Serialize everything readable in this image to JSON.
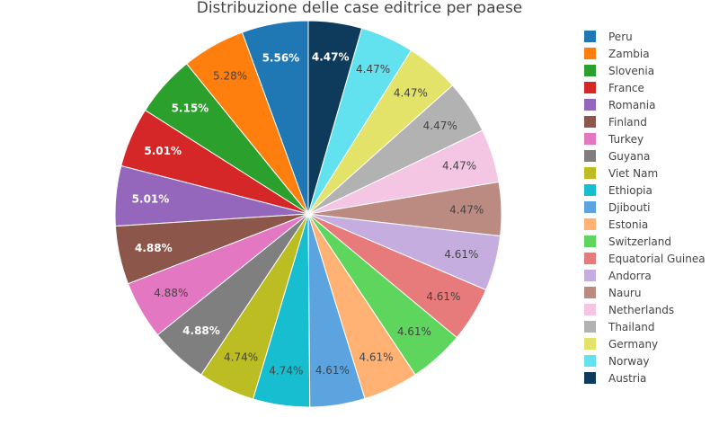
{
  "chart_data": {
    "type": "pie",
    "title": "Distribuzione delle case editrice per paese",
    "categories": [
      "Peru",
      "Zambia",
      "Slovenia",
      "France",
      "Romania",
      "Finland",
      "Turkey",
      "Guyana",
      "Viet Nam",
      "Ethiopia",
      "Djibouti",
      "Estonia",
      "Switzerland",
      "Equatorial Guinea",
      "Andorra",
      "Nauru",
      "Netherlands",
      "Thailand",
      "Germany",
      "Norway",
      "Austria"
    ],
    "values": [
      5.56,
      5.28,
      5.15,
      5.01,
      5.01,
      4.88,
      4.88,
      4.88,
      4.74,
      4.74,
      4.61,
      4.61,
      4.61,
      4.61,
      4.61,
      4.47,
      4.47,
      4.47,
      4.47,
      4.47,
      4.47
    ],
    "labels": [
      "5.56%",
      "5.28%",
      "5.15%",
      "5.01%",
      "5.01%",
      "4.88%",
      "4.88%",
      "4.88%",
      "4.74%",
      "4.74%",
      "4.61%",
      "4.61%",
      "4.61%",
      "4.61%",
      "4.61%",
      "4.47%",
      "4.47%",
      "4.47%",
      "4.47%",
      "4.47%",
      "4.47%"
    ],
    "colors": [
      "#1f77b4",
      "#ff7f0e",
      "#2ca02c",
      "#d62728",
      "#9467bd",
      "#8c564b",
      "#e377c2",
      "#7f7f7f",
      "#bcbd22",
      "#17becf",
      "#5ba4e0",
      "#ffb273",
      "#5ed65e",
      "#e77a7a",
      "#c5aedf",
      "#bb8b82",
      "#f4c6e4",
      "#b2b2b2",
      "#e2e368",
      "#62e1ee",
      "#0e3a5c"
    ],
    "label_text_colors": [
      "#ffffff",
      "#444444",
      "#ffffff",
      "#ffffff",
      "#ffffff",
      "#ffffff",
      "#444444",
      "#ffffff",
      "#444444",
      "#444444",
      "#444444",
      "#444444",
      "#444444",
      "#444444",
      "#444444",
      "#444444",
      "#444444",
      "#444444",
      "#444444",
      "#444444",
      "#ffffff"
    ],
    "legend": {
      "placement": "right",
      "order": [
        "Peru",
        "Zambia",
        "Slovenia",
        "France",
        "Romania",
        "Finland",
        "Turkey",
        "Guyana",
        "Viet Nam",
        "Ethiopia",
        "Djibouti",
        "Estonia",
        "Switzerland",
        "Equatorial Guinea",
        "Andorra",
        "Nauru",
        "Netherlands",
        "Thailand",
        "Germany",
        "Norway",
        "Austria"
      ]
    }
  }
}
